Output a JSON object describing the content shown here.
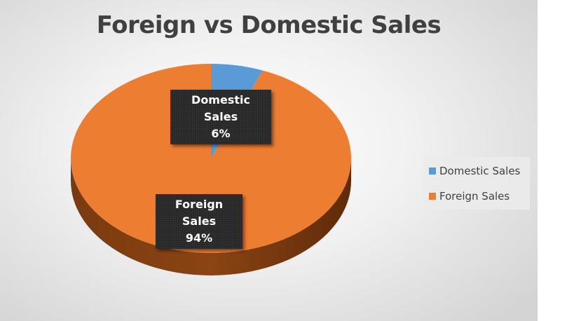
{
  "chart_data": {
    "type": "pie",
    "title": "Foreign vs Domestic Sales",
    "categories": [
      "Domestic Sales",
      "Foreign Sales"
    ],
    "values": [
      6,
      94
    ],
    "labels": [
      {
        "name": "Domestic Sales",
        "percent": "6%"
      },
      {
        "name": "Foreign Sales",
        "percent": "94%"
      }
    ],
    "colors": [
      "#5b9bd5",
      "#ed7d31"
    ],
    "legend": [
      "Domestic Sales",
      "Foreign Sales"
    ],
    "legend_position": "right",
    "style": "3d"
  }
}
